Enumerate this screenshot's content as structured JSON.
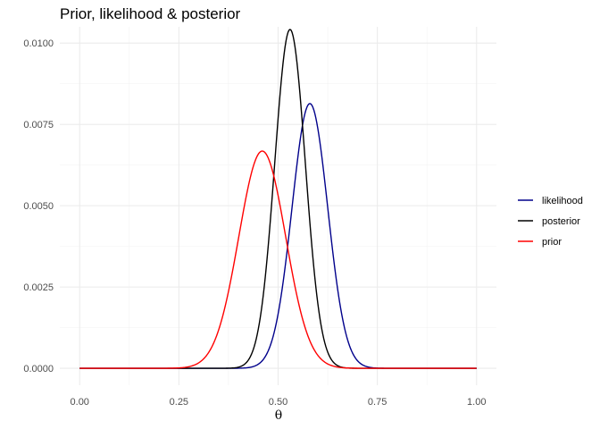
{
  "chart_data": {
    "type": "line",
    "title": "Prior, likelihood & posterior",
    "xlabel": "θ",
    "ylabel": "",
    "xlim": [
      -0.05,
      1.05
    ],
    "ylim": [
      -0.00052,
      0.0105
    ],
    "xticks": [
      0.0,
      0.25,
      0.5,
      0.75,
      1.0
    ],
    "xtick_labels": [
      "0.00",
      "0.25",
      "0.50",
      "0.75",
      "1.00"
    ],
    "yticks": [
      0.0,
      0.0025,
      0.005,
      0.0075,
      0.01
    ],
    "ytick_labels": [
      "0.0000",
      "0.0025",
      "0.0050",
      "0.0075",
      "0.0100"
    ],
    "grid": true,
    "legend_position": "right",
    "series": [
      {
        "name": "likelihood",
        "color": "#00008B",
        "peak_x": 0.58,
        "peak_y": 0.00814,
        "sd": 0.045
      },
      {
        "name": "posterior",
        "color": "#000000",
        "peak_x": 0.53,
        "peak_y": 0.01042,
        "sd": 0.0385
      },
      {
        "name": "prior",
        "color": "#FF0000",
        "peak_x": 0.46,
        "peak_y": 0.00668,
        "sd": 0.059
      }
    ]
  }
}
